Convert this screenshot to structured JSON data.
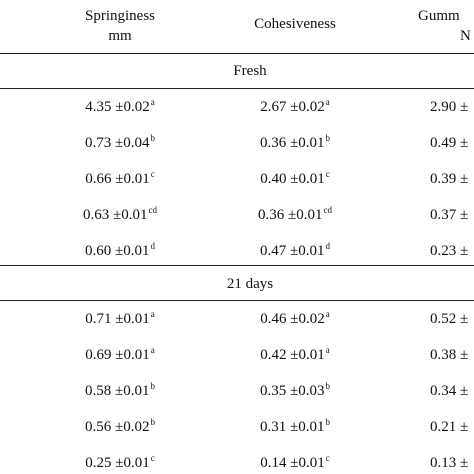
{
  "headers": [
    {
      "line1": "Springiness",
      "line2": "mm"
    },
    {
      "line1": "Cohesiveness",
      "line2": ""
    },
    {
      "line1": "Gumm",
      "line2": "N"
    }
  ],
  "sections": [
    {
      "title": "Fresh",
      "rows": [
        [
          {
            "v": "4.35 ±0.02",
            "s": "a"
          },
          {
            "v": "2.67 ±0.02",
            "s": "a"
          },
          {
            "v": "2.90 ±",
            "s": ""
          }
        ],
        [
          {
            "v": "0.73 ±0.04",
            "s": "b"
          },
          {
            "v": "0.36 ±0.01",
            "s": "b"
          },
          {
            "v": "0.49 ±",
            "s": ""
          }
        ],
        [
          {
            "v": "0.66 ±0.01",
            "s": "c"
          },
          {
            "v": "0.40 ±0.01",
            "s": "c"
          },
          {
            "v": "0.39 ±",
            "s": ""
          }
        ],
        [
          {
            "v": "0.63 ±0.01",
            "s": "cd"
          },
          {
            "v": "0.36 ±0.01",
            "s": "cd"
          },
          {
            "v": "0.37 ±",
            "s": ""
          }
        ],
        [
          {
            "v": "0.60 ±0.01",
            "s": "d"
          },
          {
            "v": "0.47 ±0.01",
            "s": "d"
          },
          {
            "v": "0.23 ±",
            "s": ""
          }
        ]
      ]
    },
    {
      "title": "21 days",
      "rows": [
        [
          {
            "v": "0.71 ±0.01",
            "s": "a"
          },
          {
            "v": "0.46 ±0.02",
            "s": "a"
          },
          {
            "v": "0.52 ±",
            "s": ""
          }
        ],
        [
          {
            "v": "0.69 ±0.01",
            "s": "a"
          },
          {
            "v": "0.42 ±0.01",
            "s": "a"
          },
          {
            "v": "0.38 ±",
            "s": ""
          }
        ],
        [
          {
            "v": "0.58 ±0.01",
            "s": "b"
          },
          {
            "v": "0.35 ±0.03",
            "s": "b"
          },
          {
            "v": "0.34 ±",
            "s": ""
          }
        ],
        [
          {
            "v": "0.56 ±0.02",
            "s": "b"
          },
          {
            "v": "0.31 ±0.01",
            "s": "b"
          },
          {
            "v": "0.21 ±",
            "s": ""
          }
        ],
        [
          {
            "v": "0.25 ±0.01",
            "s": "c"
          },
          {
            "v": "0.14 ±0.01",
            "s": "c"
          },
          {
            "v": "0.13 ±",
            "s": ""
          }
        ]
      ]
    }
  ]
}
